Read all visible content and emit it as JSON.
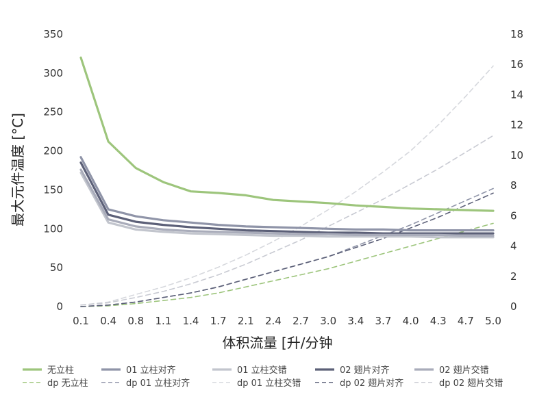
{
  "chart_data": {
    "type": "line",
    "categories": [
      "0.1",
      "0.4",
      "0.8",
      "1.1",
      "1.4",
      "1.7",
      "2.1",
      "2.4",
      "2.7",
      "3.0",
      "3.4",
      "3.7",
      "4.0",
      "4.3",
      "4.7",
      "5.0"
    ],
    "xlabel": "体积流量 [升/分钟",
    "ylabel": "最大元件温度 [°C]",
    "ylim": [
      0,
      350
    ],
    "yticks": [
      "0",
      "50",
      "100",
      "150",
      "200",
      "250",
      "300",
      "350"
    ],
    "y2lim": [
      0,
      18
    ],
    "y2ticks": [
      "0",
      "2",
      "4",
      "6",
      "8",
      "10",
      "12",
      "14",
      "16",
      "18"
    ],
    "grid": false,
    "legend_position": "bottom",
    "series": [
      {
        "name": "无立柱",
        "axis": "left",
        "style": "solid",
        "color": "#9dc57c",
        "values": [
          320,
          212,
          178,
          160,
          148,
          146,
          143,
          137,
          135,
          133,
          130,
          128,
          126,
          125,
          124,
          123
        ]
      },
      {
        "name": "01 立柱对齐",
        "axis": "left",
        "style": "solid",
        "color": "#8f94a8",
        "values": [
          192,
          125,
          116,
          111,
          108,
          105,
          103,
          102,
          101,
          100,
          99,
          99,
          98,
          98,
          98,
          98
        ]
      },
      {
        "name": "01 立柱交错",
        "axis": "left",
        "style": "solid",
        "color": "#c2c5cd",
        "values": [
          172,
          108,
          99,
          96,
          94,
          93,
          92,
          91,
          91,
          90,
          90,
          90,
          90,
          89,
          89,
          89
        ]
      },
      {
        "name": "02 翅片对齐",
        "axis": "left",
        "style": "solid",
        "color": "#5c6078",
        "values": [
          185,
          118,
          109,
          105,
          102,
          100,
          98,
          97,
          96,
          95,
          95,
          94,
          94,
          94,
          94,
          94
        ]
      },
      {
        "name": "02 翅片交错",
        "axis": "left",
        "style": "solid",
        "color": "#a9acba",
        "values": [
          176,
          112,
          103,
          99,
          97,
          96,
          95,
          94,
          93,
          93,
          92,
          92,
          92,
          92,
          91,
          91
        ]
      },
      {
        "name": "dp 无立柱",
        "axis": "right",
        "style": "dashed",
        "color": "#9dc57c",
        "values": [
          0.0,
          0.05,
          0.2,
          0.4,
          0.6,
          0.9,
          1.3,
          1.7,
          2.1,
          2.5,
          3.0,
          3.5,
          4.0,
          4.5,
          5.0,
          5.5
        ]
      },
      {
        "name": "dp 01 立柱对齐",
        "axis": "right",
        "style": "dashed",
        "color": "#8f94a8",
        "values": [
          0.0,
          0.1,
          0.3,
          0.6,
          0.9,
          1.3,
          1.8,
          2.3,
          2.8,
          3.3,
          4.0,
          4.7,
          5.4,
          6.2,
          7.0,
          7.8
        ]
      },
      {
        "name": "dp 01 立柱交错",
        "axis": "right",
        "style": "dashed",
        "color": "#d6d8dd",
        "values": [
          0.1,
          0.3,
          0.8,
          1.3,
          1.9,
          2.6,
          3.4,
          4.3,
          5.3,
          6.4,
          7.6,
          8.9,
          10.3,
          12.0,
          13.9,
          15.9
        ]
      },
      {
        "name": "dp 02 翅片对齐",
        "axis": "right",
        "style": "dashed",
        "color": "#5c6078",
        "values": [
          0.0,
          0.1,
          0.3,
          0.6,
          0.9,
          1.3,
          1.8,
          2.3,
          2.8,
          3.3,
          3.9,
          4.5,
          5.2,
          5.9,
          6.7,
          7.5
        ]
      },
      {
        "name": "dp 02 翅片交错",
        "axis": "right",
        "style": "dashed",
        "color": "#c8cad2",
        "values": [
          0.1,
          0.25,
          0.6,
          1.0,
          1.5,
          2.1,
          2.8,
          3.6,
          4.4,
          5.3,
          6.2,
          7.1,
          8.1,
          9.1,
          10.2,
          11.3
        ]
      }
    ]
  }
}
